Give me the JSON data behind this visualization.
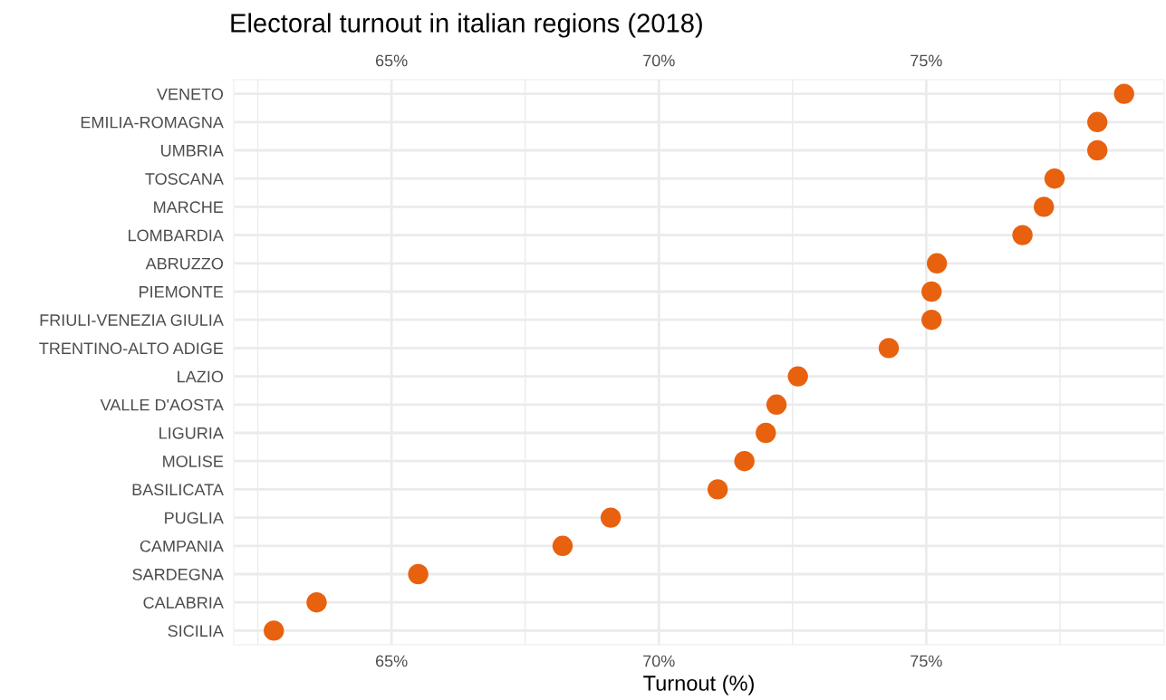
{
  "chart_data": {
    "type": "scatter",
    "orientation": "horizontal",
    "title": "Electoral turnout in italian regions (2018)",
    "xlabel": "Turnout (%)",
    "categories": [
      "VENETO",
      "EMILIA-ROMAGNA",
      "UMBRIA",
      "TOSCANA",
      "MARCHE",
      "LOMBARDIA",
      "ABRUZZO",
      "PIEMONTE",
      "FRIULI-VENEZIA GIULIA",
      "TRENTINO-ALTO ADIGE",
      "LAZIO",
      "VALLE D'AOSTA",
      "LIGURIA",
      "MOLISE",
      "BASILICATA",
      "PUGLIA",
      "CAMPANIA",
      "SARDEGNA",
      "CALABRIA",
      "SICILIA"
    ],
    "series": [
      {
        "color": "#e8610e",
        "values": [
          78.7,
          78.2,
          78.2,
          77.4,
          77.2,
          76.8,
          75.2,
          75.1,
          75.1,
          74.3,
          72.6,
          72.2,
          72.0,
          71.6,
          71.1,
          69.1,
          68.2,
          65.5,
          63.6,
          62.8
        ]
      }
    ],
    "xlim": [
      62.05,
      79.45
    ],
    "xticks": [
      {
        "value": 62.5,
        "label": null
      },
      {
        "value": 65,
        "label": "65%"
      },
      {
        "value": 67.5,
        "label": null
      },
      {
        "value": 70,
        "label": "70%"
      },
      {
        "value": 72.5,
        "label": null
      },
      {
        "value": 75,
        "label": "75%"
      },
      {
        "value": 77.5,
        "label": null
      }
    ],
    "x2lim": [
      62.05,
      79.45
    ],
    "x2ticks": [
      {
        "value": 62.5,
        "label": null
      },
      {
        "value": 65,
        "label": "65%"
      },
      {
        "value": 67.5,
        "label": null
      },
      {
        "value": 70,
        "label": "70%"
      },
      {
        "value": 72.5,
        "label": null
      },
      {
        "value": 75,
        "label": "75%"
      },
      {
        "value": 77.5,
        "label": null
      }
    ],
    "grid": true,
    "marker": "circle",
    "legend": false
  }
}
